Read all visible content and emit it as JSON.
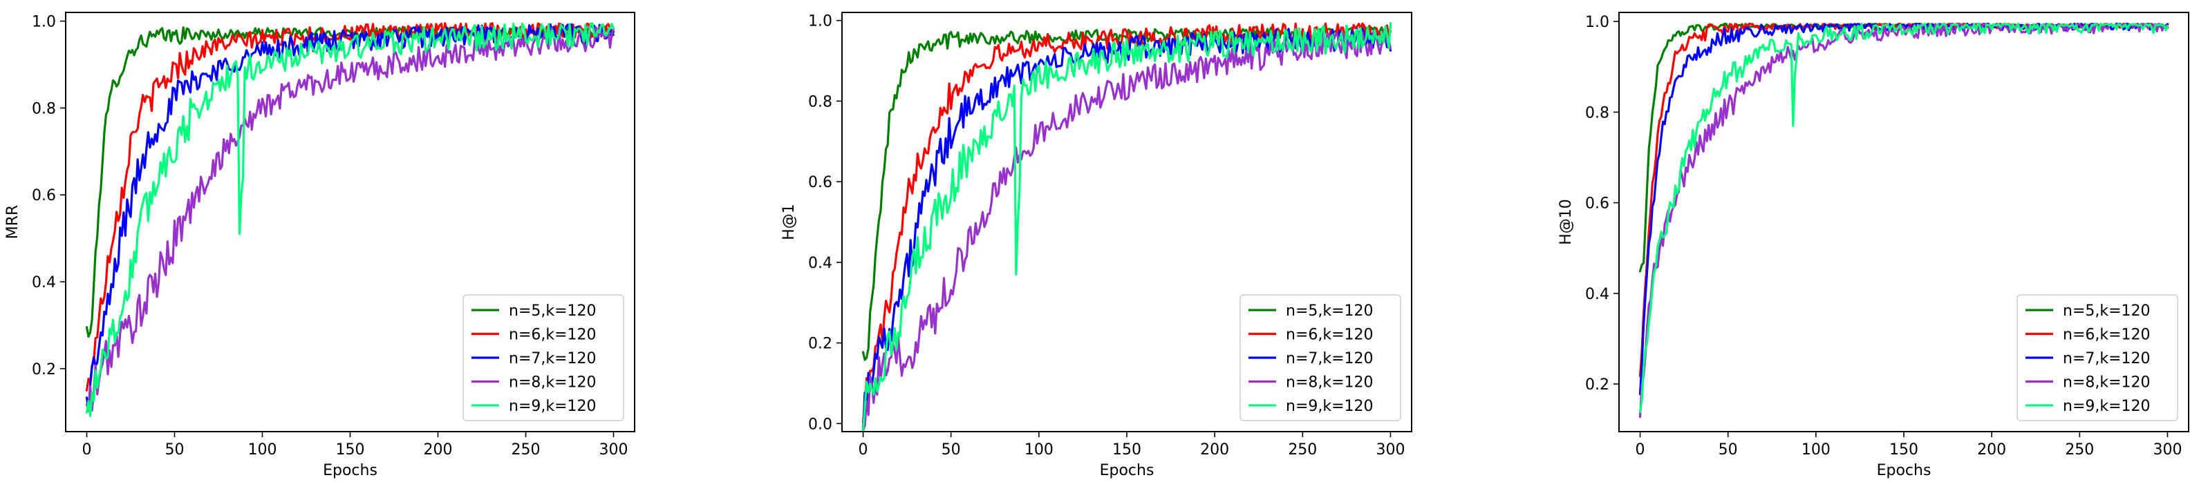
{
  "chart_data": [
    {
      "type": "line",
      "xlabel": "Epochs",
      "ylabel": "MRR",
      "xlim": [
        -12,
        312
      ],
      "ylim": [
        0.055,
        1.02
      ],
      "xticks": [
        0,
        50,
        100,
        150,
        200,
        250,
        300
      ],
      "yticks": [
        0.2,
        0.4,
        0.6,
        0.8,
        1.0
      ],
      "ytick_labels": [
        "0.2",
        "0.4",
        "0.6",
        "0.8",
        "1.0"
      ],
      "legend_position": "lower right",
      "grid": false,
      "series": [
        {
          "name": "n=5,k=120",
          "color": "#008000",
          "key": [
            [
              0,
              0.29
            ],
            [
              2,
              0.27
            ],
            [
              5,
              0.45
            ],
            [
              10,
              0.75
            ],
            [
              15,
              0.85
            ],
            [
              20,
              0.89
            ],
            [
              25,
              0.93
            ],
            [
              30,
              0.95
            ],
            [
              35,
              0.96
            ],
            [
              40,
              0.965
            ],
            [
              60,
              0.968
            ],
            [
              100,
              0.972
            ],
            [
              200,
              0.975
            ],
            [
              300,
              0.975
            ]
          ],
          "noise": 0.012,
          "dips": []
        },
        {
          "name": "n=6,k=120",
          "color": "#ff0000",
          "key": [
            [
              0,
              0.14
            ],
            [
              5,
              0.26
            ],
            [
              10,
              0.39
            ],
            [
              15,
              0.52
            ],
            [
              20,
              0.6
            ],
            [
              25,
              0.72
            ],
            [
              30,
              0.79
            ],
            [
              40,
              0.84
            ],
            [
              50,
              0.89
            ],
            [
              60,
              0.92
            ],
            [
              70,
              0.94
            ],
            [
              80,
              0.95
            ],
            [
              100,
              0.96
            ],
            [
              150,
              0.972
            ],
            [
              200,
              0.978
            ],
            [
              300,
              0.98
            ]
          ],
          "noise": 0.02,
          "dips": []
        },
        {
          "name": "n=7,k=120",
          "color": "#0000ff",
          "key": [
            [
              0,
              0.12
            ],
            [
              5,
              0.22
            ],
            [
              10,
              0.3
            ],
            [
              15,
              0.4
            ],
            [
              20,
              0.52
            ],
            [
              25,
              0.58
            ],
            [
              30,
              0.66
            ],
            [
              35,
              0.72
            ],
            [
              40,
              0.76
            ],
            [
              50,
              0.82
            ],
            [
              60,
              0.86
            ],
            [
              80,
              0.9
            ],
            [
              100,
              0.93
            ],
            [
              130,
              0.95
            ],
            [
              150,
              0.955
            ],
            [
              200,
              0.965
            ],
            [
              300,
              0.97
            ]
          ],
          "noise": 0.025,
          "dips": []
        },
        {
          "name": "n=8,k=120",
          "color": "#9932cc",
          "key": [
            [
              0,
              0.1
            ],
            [
              10,
              0.22
            ],
            [
              20,
              0.27
            ],
            [
              30,
              0.33
            ],
            [
              40,
              0.4
            ],
            [
              50,
              0.5
            ],
            [
              60,
              0.58
            ],
            [
              70,
              0.65
            ],
            [
              80,
              0.71
            ],
            [
              90,
              0.76
            ],
            [
              100,
              0.8
            ],
            [
              120,
              0.85
            ],
            [
              150,
              0.88
            ],
            [
              200,
              0.92
            ],
            [
              250,
              0.95
            ],
            [
              300,
              0.965
            ]
          ],
          "noise": 0.03,
          "dips": []
        },
        {
          "name": "n=9,k=120",
          "color": "#00ff7f",
          "key": [
            [
              0,
              0.08
            ],
            [
              5,
              0.18
            ],
            [
              10,
              0.24
            ],
            [
              15,
              0.28
            ],
            [
              20,
              0.33
            ],
            [
              25,
              0.42
            ],
            [
              30,
              0.52
            ],
            [
              40,
              0.64
            ],
            [
              50,
              0.72
            ],
            [
              60,
              0.78
            ],
            [
              70,
              0.83
            ],
            [
              80,
              0.87
            ],
            [
              90,
              0.89
            ],
            [
              100,
              0.9
            ],
            [
              120,
              0.92
            ],
            [
              150,
              0.94
            ],
            [
              200,
              0.96
            ],
            [
              300,
              0.97
            ]
          ],
          "noise": 0.03,
          "dips": [
            [
              87,
              0.51
            ],
            [
              88,
              0.6
            ],
            [
              89,
              0.64
            ]
          ]
        }
      ]
    },
    {
      "type": "line",
      "xlabel": "Epochs",
      "ylabel": "H@1",
      "xlim": [
        -12,
        312
      ],
      "ylim": [
        -0.02,
        1.02
      ],
      "xticks": [
        0,
        50,
        100,
        150,
        200,
        250,
        300
      ],
      "yticks": [
        0.0,
        0.2,
        0.4,
        0.6,
        0.8,
        1.0
      ],
      "ytick_labels": [
        "0.0",
        "0.2",
        "0.4",
        "0.6",
        "0.8",
        "1.0"
      ],
      "legend_position": "lower right",
      "grid": false,
      "series": [
        {
          "name": "n=5,k=120",
          "color": "#008000",
          "key": [
            [
              0,
              0.2
            ],
            [
              2,
              0.16
            ],
            [
              5,
              0.3
            ],
            [
              10,
              0.55
            ],
            [
              15,
              0.75
            ],
            [
              20,
              0.85
            ],
            [
              25,
              0.9
            ],
            [
              30,
              0.93
            ],
            [
              35,
              0.94
            ],
            [
              40,
              0.95
            ],
            [
              60,
              0.955
            ],
            [
              100,
              0.96
            ],
            [
              200,
              0.965
            ],
            [
              300,
              0.97
            ]
          ],
          "noise": 0.015,
          "dips": []
        },
        {
          "name": "n=6,k=120",
          "color": "#ff0000",
          "key": [
            [
              0,
              0.04
            ],
            [
              5,
              0.14
            ],
            [
              10,
              0.22
            ],
            [
              15,
              0.3
            ],
            [
              20,
              0.42
            ],
            [
              25,
              0.55
            ],
            [
              30,
              0.64
            ],
            [
              40,
              0.74
            ],
            [
              50,
              0.82
            ],
            [
              60,
              0.87
            ],
            [
              70,
              0.9
            ],
            [
              80,
              0.92
            ],
            [
              100,
              0.94
            ],
            [
              150,
              0.955
            ],
            [
              200,
              0.965
            ],
            [
              300,
              0.97
            ]
          ],
          "noise": 0.025,
          "dips": []
        },
        {
          "name": "n=7,k=120",
          "color": "#0000ff",
          "key": [
            [
              0,
              0.03
            ],
            [
              5,
              0.14
            ],
            [
              10,
              0.19
            ],
            [
              15,
              0.24
            ],
            [
              20,
              0.3
            ],
            [
              25,
              0.38
            ],
            [
              30,
              0.47
            ],
            [
              35,
              0.56
            ],
            [
              40,
              0.62
            ],
            [
              50,
              0.72
            ],
            [
              60,
              0.78
            ],
            [
              80,
              0.85
            ],
            [
              100,
              0.89
            ],
            [
              130,
              0.92
            ],
            [
              150,
              0.93
            ],
            [
              200,
              0.945
            ],
            [
              300,
              0.955
            ]
          ],
          "noise": 0.03,
          "dips": []
        },
        {
          "name": "n=8,k=120",
          "color": "#9932cc",
          "key": [
            [
              0,
              0.03
            ],
            [
              10,
              0.12
            ],
            [
              20,
              0.16
            ],
            [
              30,
              0.2
            ],
            [
              40,
              0.27
            ],
            [
              50,
              0.36
            ],
            [
              60,
              0.45
            ],
            [
              70,
              0.53
            ],
            [
              80,
              0.61
            ],
            [
              90,
              0.67
            ],
            [
              100,
              0.72
            ],
            [
              120,
              0.78
            ],
            [
              150,
              0.84
            ],
            [
              200,
              0.89
            ],
            [
              250,
              0.93
            ],
            [
              300,
              0.95
            ]
          ],
          "noise": 0.035,
          "dips": []
        },
        {
          "name": "n=9,k=120",
          "color": "#00ff7f",
          "key": [
            [
              0,
              0.03
            ],
            [
              5,
              0.1
            ],
            [
              10,
              0.15
            ],
            [
              15,
              0.18
            ],
            [
              20,
              0.22
            ],
            [
              25,
              0.3
            ],
            [
              30,
              0.4
            ],
            [
              40,
              0.5
            ],
            [
              50,
              0.58
            ],
            [
              60,
              0.66
            ],
            [
              70,
              0.72
            ],
            [
              80,
              0.79
            ],
            [
              90,
              0.83
            ],
            [
              100,
              0.86
            ],
            [
              120,
              0.89
            ],
            [
              150,
              0.92
            ],
            [
              200,
              0.94
            ],
            [
              300,
              0.96
            ]
          ],
          "noise": 0.035,
          "dips": [
            [
              87,
              0.37
            ],
            [
              88,
              0.5
            ],
            [
              89,
              0.58
            ]
          ]
        }
      ]
    },
    {
      "type": "line",
      "xlabel": "Epochs",
      "ylabel": "H@10",
      "xlim": [
        -12,
        312
      ],
      "ylim": [
        0.095,
        1.02
      ],
      "xticks": [
        0,
        50,
        100,
        150,
        200,
        250,
        300
      ],
      "yticks": [
        0.2,
        0.4,
        0.6,
        0.8,
        1.0
      ],
      "ytick_labels": [
        "0.2",
        "0.4",
        "0.6",
        "0.8",
        "1.0"
      ],
      "legend_position": "lower right",
      "grid": false,
      "series": [
        {
          "name": "n=5,k=120",
          "color": "#008000",
          "key": [
            [
              0,
              0.45
            ],
            [
              2,
              0.47
            ],
            [
              5,
              0.72
            ],
            [
              10,
              0.9
            ],
            [
              15,
              0.95
            ],
            [
              20,
              0.97
            ],
            [
              30,
              0.985
            ],
            [
              50,
              0.99
            ],
            [
              100,
              0.99
            ],
            [
              300,
              0.99
            ]
          ],
          "noise": 0.004,
          "dips": []
        },
        {
          "name": "n=6,k=120",
          "color": "#ff0000",
          "key": [
            [
              0,
              0.22
            ],
            [
              3,
              0.42
            ],
            [
              5,
              0.55
            ],
            [
              10,
              0.75
            ],
            [
              15,
              0.85
            ],
            [
              20,
              0.92
            ],
            [
              30,
              0.96
            ],
            [
              40,
              0.98
            ],
            [
              60,
              0.99
            ],
            [
              100,
              0.992
            ],
            [
              300,
              0.995
            ]
          ],
          "noise": 0.01,
          "dips": []
        },
        {
          "name": "n=7,k=120",
          "color": "#0000ff",
          "key": [
            [
              0,
              0.18
            ],
            [
              3,
              0.38
            ],
            [
              5,
              0.5
            ],
            [
              10,
              0.7
            ],
            [
              15,
              0.8
            ],
            [
              20,
              0.87
            ],
            [
              30,
              0.92
            ],
            [
              40,
              0.95
            ],
            [
              50,
              0.97
            ],
            [
              70,
              0.98
            ],
            [
              100,
              0.99
            ],
            [
              300,
              0.993
            ]
          ],
          "noise": 0.012,
          "dips": []
        },
        {
          "name": "n=8,k=120",
          "color": "#9932cc",
          "key": [
            [
              0,
              0.13
            ],
            [
              5,
              0.38
            ],
            [
              10,
              0.48
            ],
            [
              15,
              0.55
            ],
            [
              20,
              0.62
            ],
            [
              30,
              0.7
            ],
            [
              40,
              0.76
            ],
            [
              50,
              0.81
            ],
            [
              60,
              0.85
            ],
            [
              70,
              0.89
            ],
            [
              80,
              0.92
            ],
            [
              100,
              0.95
            ],
            [
              120,
              0.97
            ],
            [
              150,
              0.98
            ],
            [
              200,
              0.99
            ],
            [
              300,
              0.992
            ]
          ],
          "noise": 0.018,
          "dips": []
        },
        {
          "name": "n=9,k=120",
          "color": "#00ff7f",
          "key": [
            [
              0,
              0.14
            ],
            [
              5,
              0.36
            ],
            [
              10,
              0.48
            ],
            [
              15,
              0.56
            ],
            [
              20,
              0.63
            ],
            [
              30,
              0.74
            ],
            [
              40,
              0.82
            ],
            [
              50,
              0.87
            ],
            [
              60,
              0.91
            ],
            [
              70,
              0.94
            ],
            [
              80,
              0.95
            ],
            [
              90,
              0.96
            ],
            [
              100,
              0.97
            ],
            [
              150,
              0.985
            ],
            [
              200,
              0.99
            ],
            [
              300,
              0.993
            ]
          ],
          "noise": 0.018,
          "dips": [
            [
              87,
              0.77
            ],
            [
              88,
              0.88
            ],
            [
              89,
              0.92
            ]
          ]
        }
      ]
    }
  ]
}
